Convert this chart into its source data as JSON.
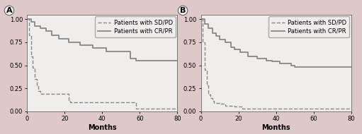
{
  "background_color": "#dfc8c8",
  "panel_bg": "#f0eded",
  "line_color_solid": "#888888",
  "line_color_dashed": "#888888",
  "panels": [
    {
      "label": "A",
      "sd_pd": {
        "x": [
          0,
          1,
          2,
          3,
          4,
          5,
          6,
          7,
          8,
          20,
          22,
          23,
          55,
          58,
          80
        ],
        "y": [
          1.0,
          0.83,
          0.6,
          0.47,
          0.35,
          0.28,
          0.22,
          0.19,
          0.19,
          0.19,
          0.12,
          0.1,
          0.1,
          0.03,
          0.03
        ]
      },
      "cr_pr": {
        "x": [
          0,
          2,
          4,
          7,
          10,
          13,
          17,
          22,
          28,
          35,
          42,
          55,
          58,
          80
        ],
        "y": [
          1.0,
          0.97,
          0.93,
          0.9,
          0.87,
          0.83,
          0.79,
          0.75,
          0.72,
          0.69,
          0.65,
          0.57,
          0.55,
          0.55
        ]
      }
    },
    {
      "label": "B",
      "sd_pd": {
        "x": [
          0,
          1,
          2,
          3,
          4,
          5,
          6,
          7,
          8,
          10,
          13,
          18,
          22,
          80
        ],
        "y": [
          1.0,
          0.75,
          0.45,
          0.28,
          0.18,
          0.14,
          0.11,
          0.09,
          0.09,
          0.08,
          0.06,
          0.05,
          0.03,
          0.03
        ]
      },
      "cr_pr": {
        "x": [
          0,
          2,
          4,
          6,
          8,
          10,
          13,
          16,
          18,
          21,
          25,
          30,
          35,
          38,
          42,
          48,
          50,
          80
        ],
        "y": [
          1.0,
          0.95,
          0.9,
          0.85,
          0.82,
          0.78,
          0.75,
          0.7,
          0.67,
          0.64,
          0.6,
          0.57,
          0.55,
          0.54,
          0.52,
          0.5,
          0.48,
          0.48
        ]
      }
    }
  ],
  "xlim": [
    0,
    80
  ],
  "ylim": [
    0.0,
    1.05
  ],
  "xticks": [
    0,
    20,
    40,
    60,
    80
  ],
  "yticks": [
    0.0,
    0.25,
    0.5,
    0.75,
    1.0
  ],
  "ytick_labels": [
    "0.00",
    "0.25",
    "0.50",
    "0.75",
    "1.00"
  ],
  "xlabel": "Months",
  "legend_sd_pd": "Patients with SD/PD",
  "legend_cr_pr": "Patients with CR/PR",
  "fontsize_label": 7,
  "fontsize_tick": 6,
  "fontsize_legend": 6,
  "fontsize_panel_label": 8
}
